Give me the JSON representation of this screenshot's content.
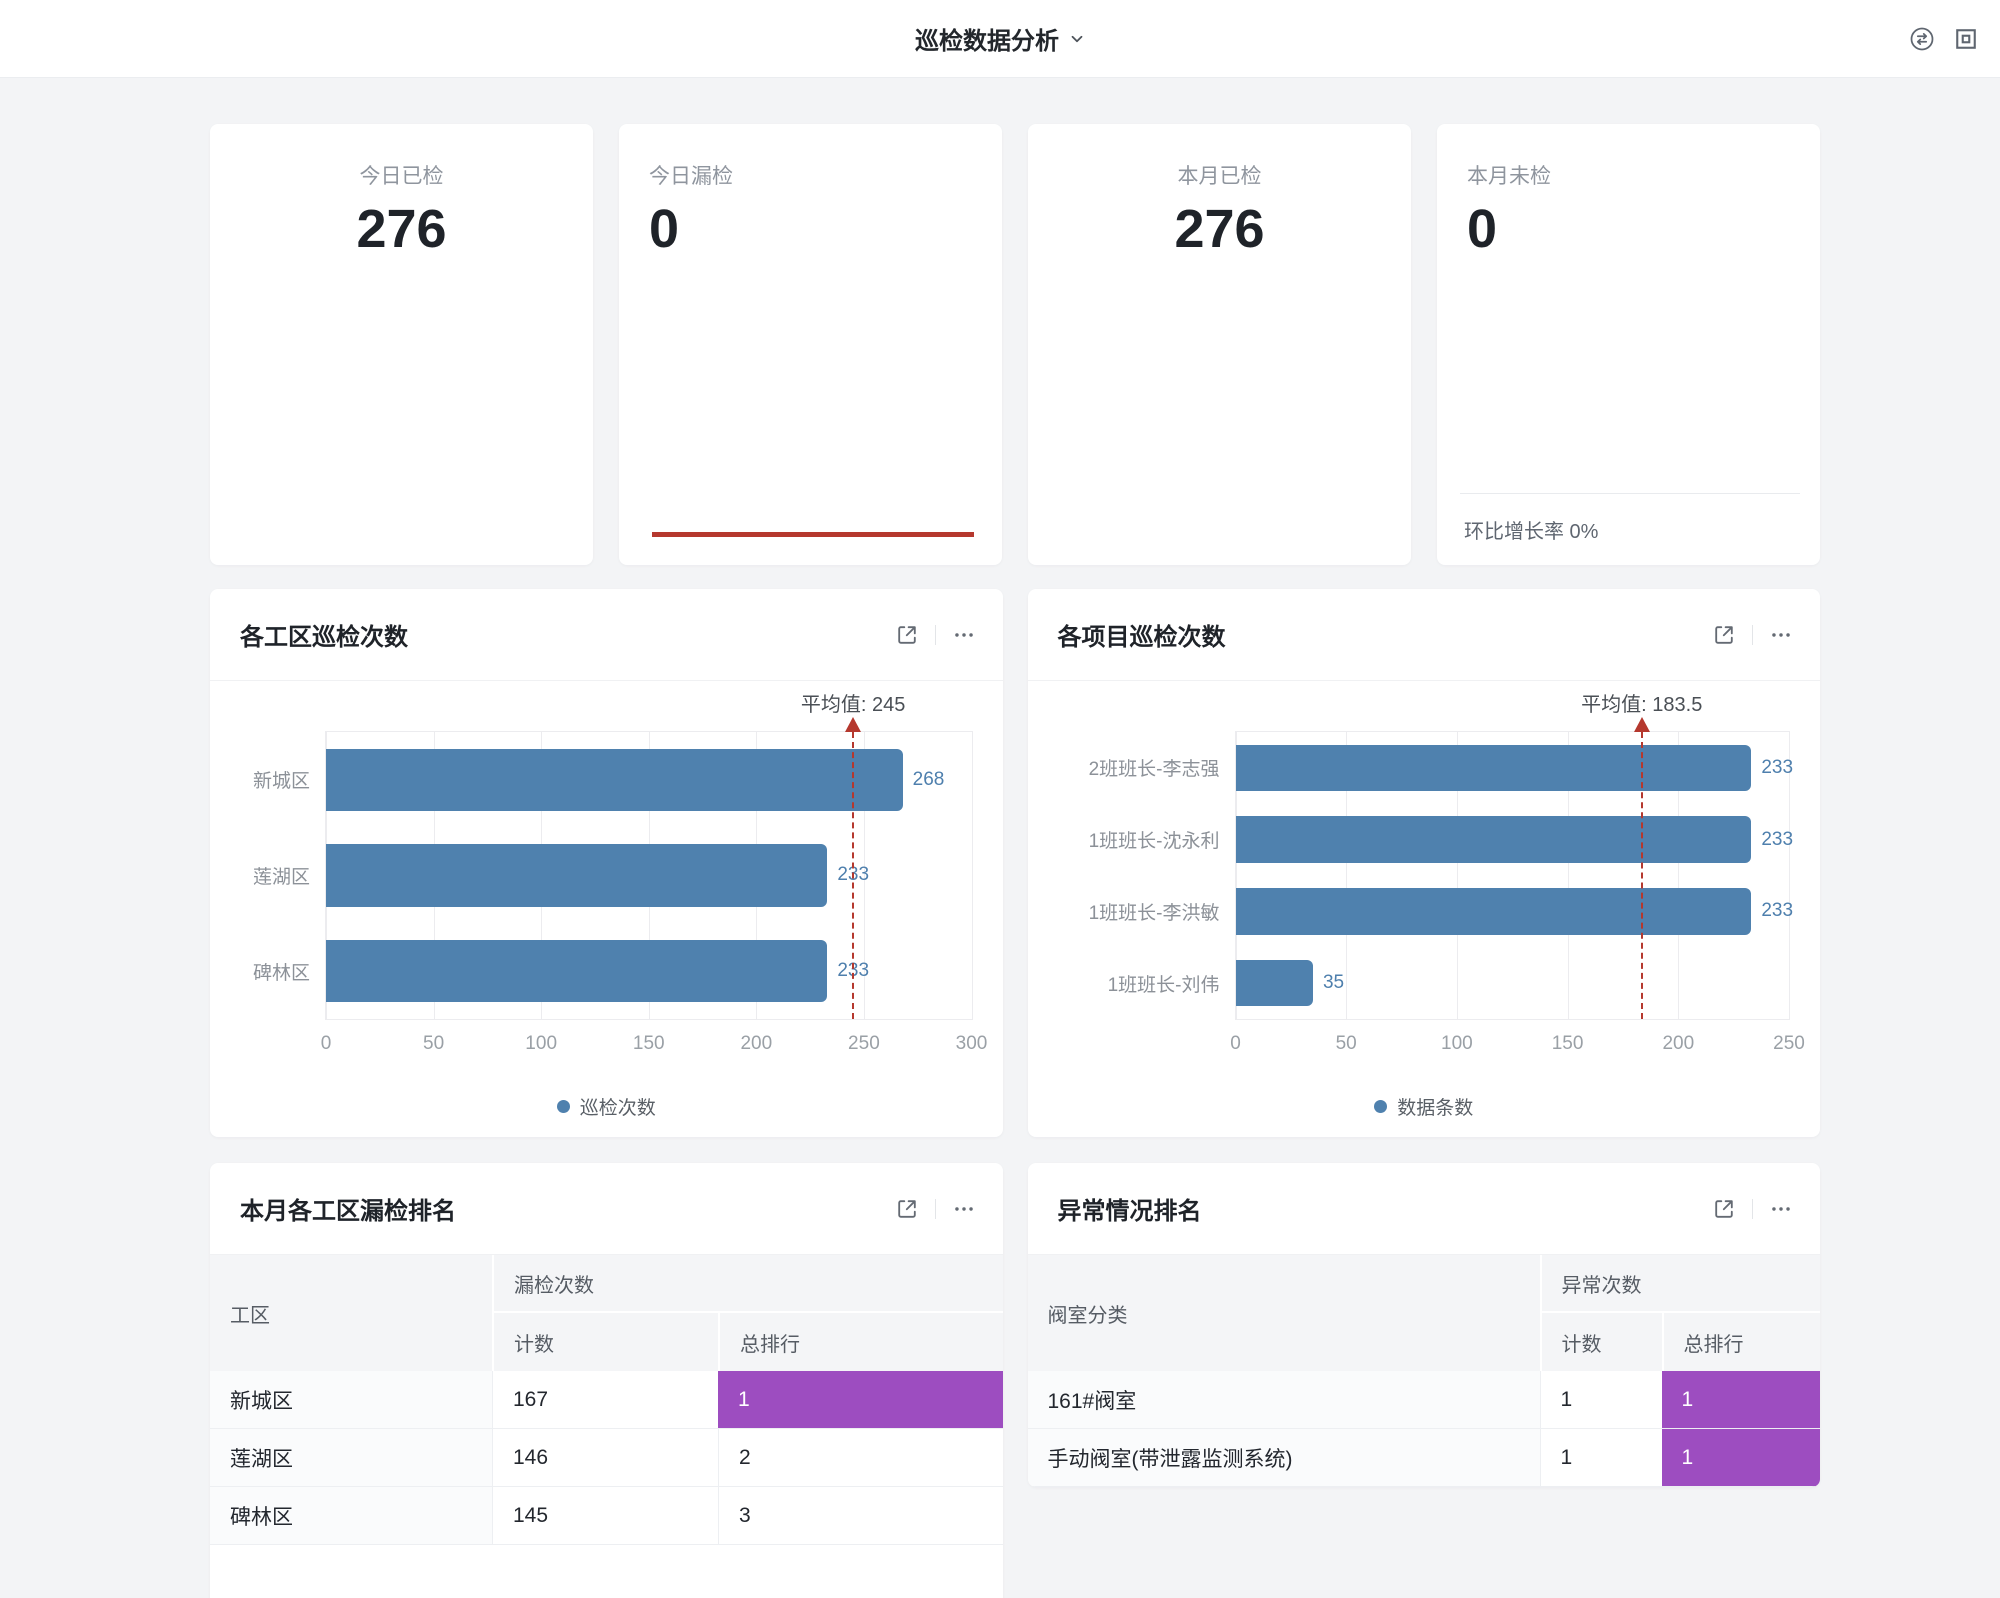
{
  "header": {
    "title": "巡检数据分析"
  },
  "stat_cards": [
    {
      "label": "今日已检",
      "value": "276"
    },
    {
      "label": "今日漏检",
      "value": "0"
    },
    {
      "label": "本月已检",
      "value": "276"
    },
    {
      "label": "本月未检",
      "value": "0",
      "footer": "环比增长率 0%"
    }
  ],
  "chart_data": [
    {
      "type": "bar",
      "orientation": "horizontal",
      "title": "各工区巡检次数",
      "categories": [
        "新城区",
        "莲湖区",
        "碑林区"
      ],
      "values": [
        268,
        233,
        233
      ],
      "average": 245,
      "average_label": "平均值: 245",
      "xlim": [
        0,
        300
      ],
      "xticks": [
        0,
        50,
        100,
        150,
        200,
        250,
        300
      ],
      "legend": "巡检次数",
      "legend_position": "bottom-center",
      "grid": true,
      "bar_color": "#4f81ae",
      "average_line_color": "#b5382e"
    },
    {
      "type": "bar",
      "orientation": "horizontal",
      "title": "各项目巡检次数",
      "categories": [
        "2班班长-李志强",
        "1班班长-沈永利",
        "1班班长-李洪敏",
        "1班班长-刘伟"
      ],
      "values": [
        233,
        233,
        233,
        35
      ],
      "average": 183.5,
      "average_label": "平均值: 183.5",
      "xlim": [
        0,
        250
      ],
      "xticks": [
        0,
        50,
        100,
        150,
        200,
        250
      ],
      "legend": "数据条数",
      "legend_position": "bottom-center",
      "grid": true,
      "bar_color": "#4f81ae",
      "average_line_color": "#b5382e"
    }
  ],
  "tables": [
    {
      "title": "本月各工区漏检排名",
      "dim_header": "工区",
      "group_header": "漏检次数",
      "sub_headers": [
        "计数",
        "总排行"
      ],
      "rows": [
        {
          "name": "新城区",
          "count": "167",
          "rank": "1",
          "rank_highlight": true
        },
        {
          "name": "莲湖区",
          "count": "146",
          "rank": "2",
          "rank_highlight": false
        },
        {
          "name": "碑林区",
          "count": "145",
          "rank": "3",
          "rank_highlight": false
        }
      ]
    },
    {
      "title": "异常情况排名",
      "dim_header": "阀室分类",
      "group_header": "异常次数",
      "sub_headers": [
        "计数",
        "总排行"
      ],
      "rows": [
        {
          "name": "161#阀室",
          "count": "1",
          "rank": "1",
          "rank_highlight": true
        },
        {
          "name": "手动阀室(带泄露监测系统)",
          "count": "1",
          "rank": "1",
          "rank_highlight": true
        }
      ]
    }
  ],
  "colors": {
    "bar_blue": "#4f81ae",
    "value_label_blue": "#4e7fad",
    "average_red": "#b5382e",
    "rank_highlight_purple": "#9d4dc0",
    "page_background": "#f3f4f6"
  }
}
